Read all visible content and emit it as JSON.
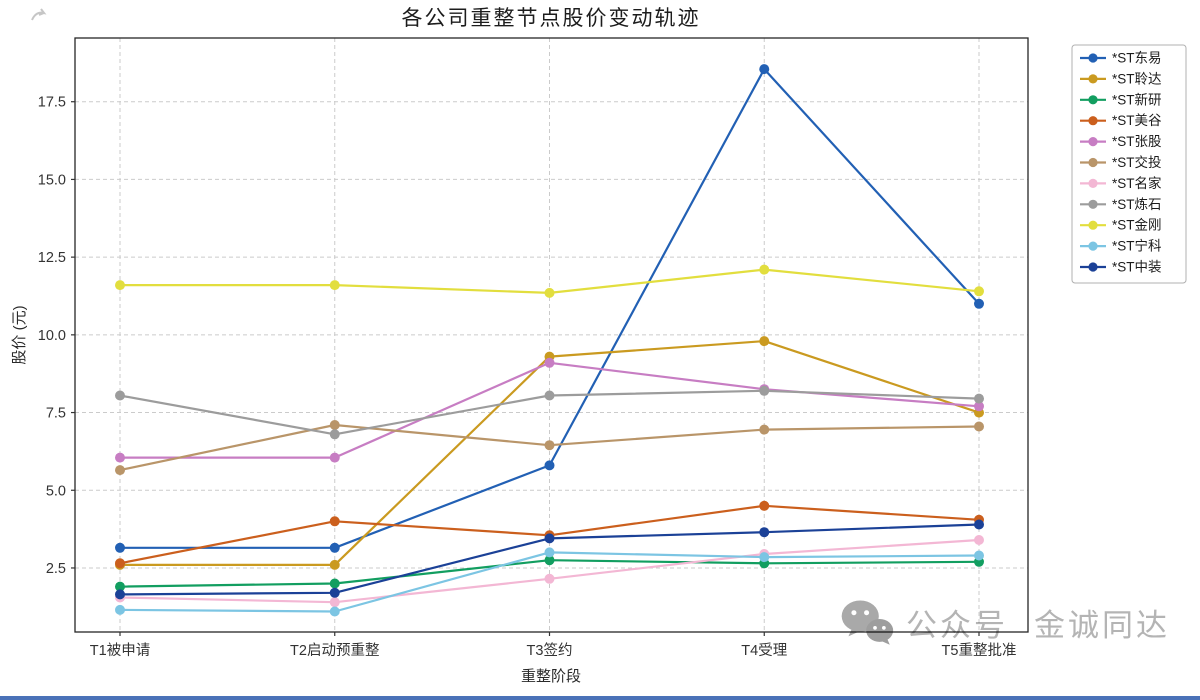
{
  "figure": {
    "background": "#ffffff",
    "bottom_bar_color": "#4a72b8"
  },
  "watermark": {
    "icon": "wechat-icon",
    "account_label": "公众号",
    "account_name": "金诚同达",
    "color": "#b4b4b4"
  },
  "chart_data": {
    "type": "line",
    "title": "各公司重整节点股价变动轨迹",
    "xlabel": "重整阶段",
    "ylabel": "股价 (元)",
    "categories": [
      "T1被申请",
      "T2启动预重整",
      "T3签约",
      "T4受理",
      "T5重整批准"
    ],
    "yticks": [
      2.5,
      5.0,
      7.5,
      10.0,
      12.5,
      15.0,
      17.5
    ],
    "ylim": [
      0.44,
      19.55
    ],
    "grid": "dashed-both-axes",
    "legend_position": "upper-right-outside",
    "marker": "circle",
    "series": [
      {
        "name": "*ST东易",
        "color": "#2260b4",
        "values": [
          3.15,
          3.15,
          5.8,
          18.55,
          11.0
        ]
      },
      {
        "name": "*ST聆达",
        "color": "#ca9a20",
        "values": [
          2.6,
          2.6,
          9.3,
          9.8,
          7.5
        ]
      },
      {
        "name": "*ST新研",
        "color": "#129e60",
        "values": [
          1.9,
          2.0,
          2.75,
          2.65,
          2.7
        ]
      },
      {
        "name": "*ST美谷",
        "color": "#cb5f1d",
        "values": [
          2.65,
          4.0,
          3.55,
          4.5,
          4.05
        ]
      },
      {
        "name": "*ST张股",
        "color": "#c77dc3",
        "values": [
          6.05,
          6.05,
          9.1,
          8.25,
          7.7
        ]
      },
      {
        "name": "*ST交投",
        "color": "#b99569",
        "values": [
          5.65,
          7.1,
          6.45,
          6.95,
          7.05
        ]
      },
      {
        "name": "*ST名家",
        "color": "#f3b7d4",
        "values": [
          1.55,
          1.4,
          2.15,
          2.95,
          3.4
        ]
      },
      {
        "name": "*ST炼石",
        "color": "#9c9c9c",
        "values": [
          8.05,
          6.8,
          8.05,
          8.2,
          7.95
        ]
      },
      {
        "name": "*ST金刚",
        "color": "#e2de3e",
        "values": [
          11.6,
          11.6,
          11.35,
          12.1,
          11.4
        ]
      },
      {
        "name": "*ST宁科",
        "color": "#7cc5e3",
        "values": [
          1.15,
          1.1,
          3.0,
          2.85,
          2.9
        ]
      },
      {
        "name": "*ST中装",
        "color": "#1b4197",
        "values": [
          1.65,
          1.7,
          3.45,
          3.65,
          3.9
        ]
      }
    ]
  }
}
